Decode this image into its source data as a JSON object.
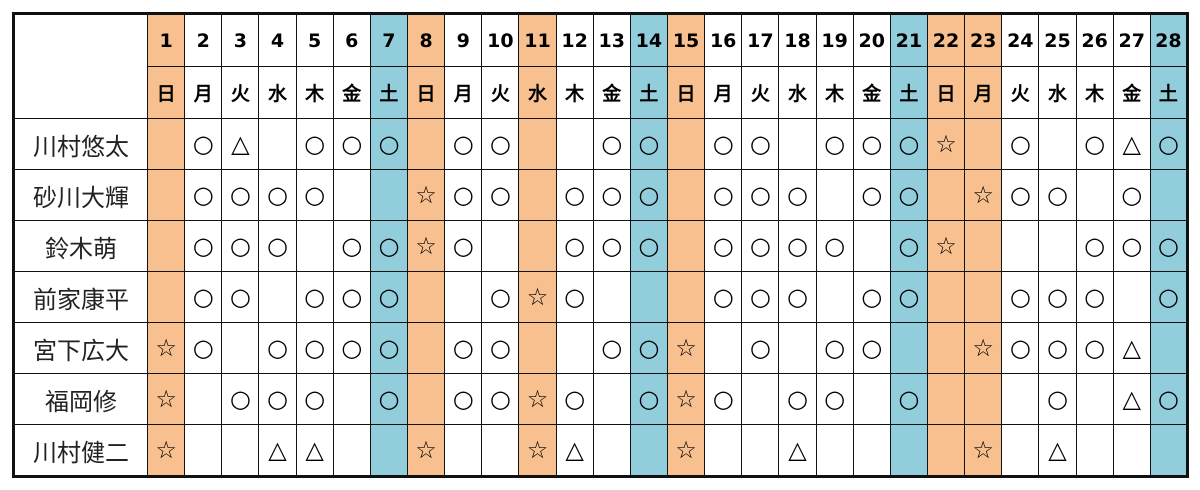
{
  "colors": {
    "holiday": "#f9c08f",
    "saturday": "#92cddc"
  },
  "days": [
    {
      "num": "1",
      "dow": "日",
      "type": "sun"
    },
    {
      "num": "2",
      "dow": "月",
      "type": ""
    },
    {
      "num": "3",
      "dow": "火",
      "type": ""
    },
    {
      "num": "4",
      "dow": "水",
      "type": ""
    },
    {
      "num": "5",
      "dow": "木",
      "type": ""
    },
    {
      "num": "6",
      "dow": "金",
      "type": ""
    },
    {
      "num": "7",
      "dow": "土",
      "type": "sat"
    },
    {
      "num": "8",
      "dow": "日",
      "type": "sun"
    },
    {
      "num": "9",
      "dow": "月",
      "type": ""
    },
    {
      "num": "10",
      "dow": "火",
      "type": ""
    },
    {
      "num": "11",
      "dow": "水",
      "type": "sun"
    },
    {
      "num": "12",
      "dow": "木",
      "type": ""
    },
    {
      "num": "13",
      "dow": "金",
      "type": ""
    },
    {
      "num": "14",
      "dow": "土",
      "type": "sat"
    },
    {
      "num": "15",
      "dow": "日",
      "type": "sun"
    },
    {
      "num": "16",
      "dow": "月",
      "type": ""
    },
    {
      "num": "17",
      "dow": "火",
      "type": ""
    },
    {
      "num": "18",
      "dow": "水",
      "type": ""
    },
    {
      "num": "19",
      "dow": "木",
      "type": ""
    },
    {
      "num": "20",
      "dow": "金",
      "type": ""
    },
    {
      "num": "21",
      "dow": "土",
      "type": "sat"
    },
    {
      "num": "22",
      "dow": "日",
      "type": "sun"
    },
    {
      "num": "23",
      "dow": "月",
      "type": "sun"
    },
    {
      "num": "24",
      "dow": "火",
      "type": ""
    },
    {
      "num": "25",
      "dow": "水",
      "type": ""
    },
    {
      "num": "26",
      "dow": "木",
      "type": ""
    },
    {
      "num": "27",
      "dow": "金",
      "type": ""
    },
    {
      "num": "28",
      "dow": "土",
      "type": "sat"
    }
  ],
  "rows": [
    {
      "name": "川村悠太",
      "cells": [
        "",
        "○",
        "△",
        "",
        "○",
        "○",
        "○",
        "",
        "○",
        "○",
        "",
        "",
        "○",
        "○",
        "",
        "○",
        "○",
        "",
        "○",
        "○",
        "○",
        "☆",
        "",
        "○",
        "",
        "○",
        "△",
        "○"
      ]
    },
    {
      "name": "砂川大輝",
      "cells": [
        "",
        "○",
        "○",
        "○",
        "○",
        "",
        "",
        "☆",
        "○",
        "○",
        "",
        "○",
        "○",
        "○",
        "",
        "○",
        "○",
        "○",
        "",
        "○",
        "○",
        "",
        "☆",
        "○",
        "○",
        "",
        "○",
        ""
      ]
    },
    {
      "name": "鈴木萌",
      "cells": [
        "",
        "○",
        "○",
        "○",
        "",
        "○",
        "○",
        "☆",
        "○",
        "",
        "",
        "○",
        "○",
        "○",
        "",
        "○",
        "○",
        "○",
        "○",
        "",
        "○",
        "☆",
        "",
        "",
        "",
        "○",
        "○",
        "○"
      ]
    },
    {
      "name": "前家康平",
      "cells": [
        "",
        "○",
        "○",
        "",
        "○",
        "○",
        "○",
        "",
        "",
        "○",
        "☆",
        "○",
        "",
        "",
        "",
        "○",
        "○",
        "○",
        "",
        "○",
        "○",
        "",
        "",
        "○",
        "○",
        "○",
        "",
        "○"
      ]
    },
    {
      "name": "宮下広大",
      "cells": [
        "☆",
        "○",
        "",
        "○",
        "○",
        "○",
        "○",
        "",
        "○",
        "○",
        "",
        "",
        "○",
        "○",
        "☆",
        "",
        "○",
        "",
        "○",
        "○",
        "",
        "",
        "☆",
        "○",
        "○",
        "○",
        "△",
        ""
      ]
    },
    {
      "name": "福岡修",
      "cells": [
        "☆",
        "",
        "○",
        "○",
        "○",
        "",
        "○",
        "",
        "○",
        "○",
        "☆",
        "○",
        "",
        "○",
        "☆",
        "○",
        "",
        "○",
        "○",
        "",
        "○",
        "",
        "",
        "",
        "○",
        "",
        "△",
        "○"
      ]
    },
    {
      "name": "川村健二",
      "cells": [
        "☆",
        "",
        "",
        "△",
        "△",
        "",
        "",
        "☆",
        "",
        "",
        "☆",
        "△",
        "",
        "",
        "☆",
        "",
        "",
        "△",
        "",
        "",
        "",
        "",
        "☆",
        "",
        "△",
        "",
        "",
        ""
      ]
    }
  ]
}
